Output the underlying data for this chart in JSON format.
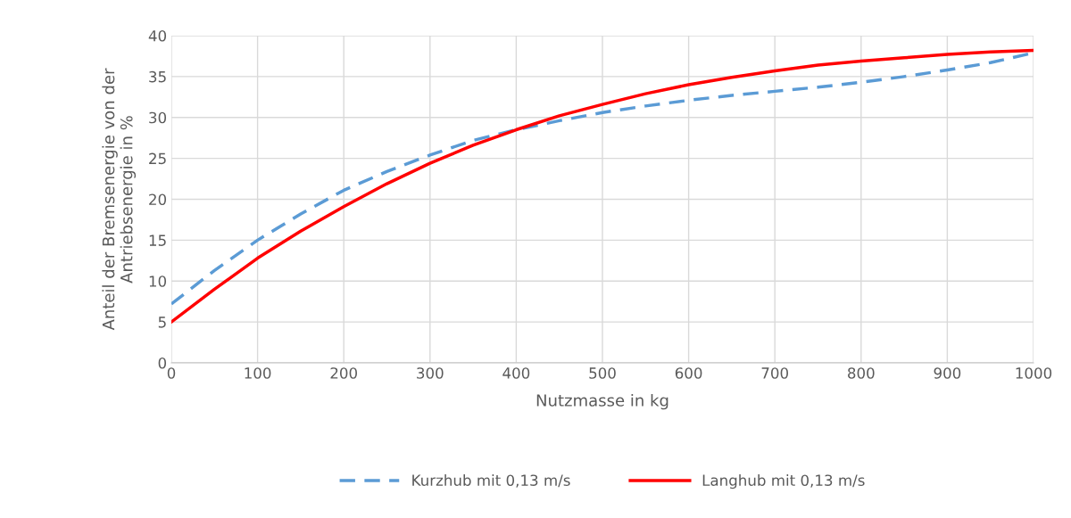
{
  "chart_data": {
    "type": "line",
    "xlabel": "Nutzmasse in kg",
    "ylabel": "Anteil der Bremsenergie von der\nAntriebsenergie in %",
    "x": [
      0,
      50,
      100,
      150,
      200,
      250,
      300,
      350,
      400,
      450,
      500,
      550,
      600,
      650,
      700,
      750,
      800,
      850,
      900,
      950,
      1000
    ],
    "series": [
      {
        "name": "Kurzhub mit 0,13 m/s",
        "color": "#5b9bd5",
        "line_style": "dashed",
        "values": [
          7.2,
          11.3,
          15.0,
          18.2,
          21.1,
          23.4,
          25.4,
          27.2,
          28.5,
          29.6,
          30.6,
          31.4,
          32.1,
          32.7,
          33.2,
          33.7,
          34.3,
          35.0,
          35.8,
          36.7,
          37.9
        ]
      },
      {
        "name": "Langhub mit 0,13 m/s",
        "color": "#ff0000",
        "line_style": "solid",
        "values": [
          5.0,
          9.0,
          12.8,
          16.1,
          19.1,
          21.9,
          24.4,
          26.6,
          28.5,
          30.2,
          31.6,
          32.9,
          34.0,
          34.9,
          35.7,
          36.4,
          36.9,
          37.3,
          37.7,
          38.0,
          38.2
        ]
      }
    ],
    "xlim": [
      0,
      1000
    ],
    "xticks": [
      0,
      100,
      200,
      300,
      400,
      500,
      600,
      700,
      800,
      900,
      1000
    ],
    "ylim": [
      0,
      40
    ],
    "yticks": [
      0,
      5,
      10,
      15,
      20,
      25,
      30,
      35,
      40
    ],
    "grid": true,
    "legend": "bottom",
    "marker": "none"
  }
}
